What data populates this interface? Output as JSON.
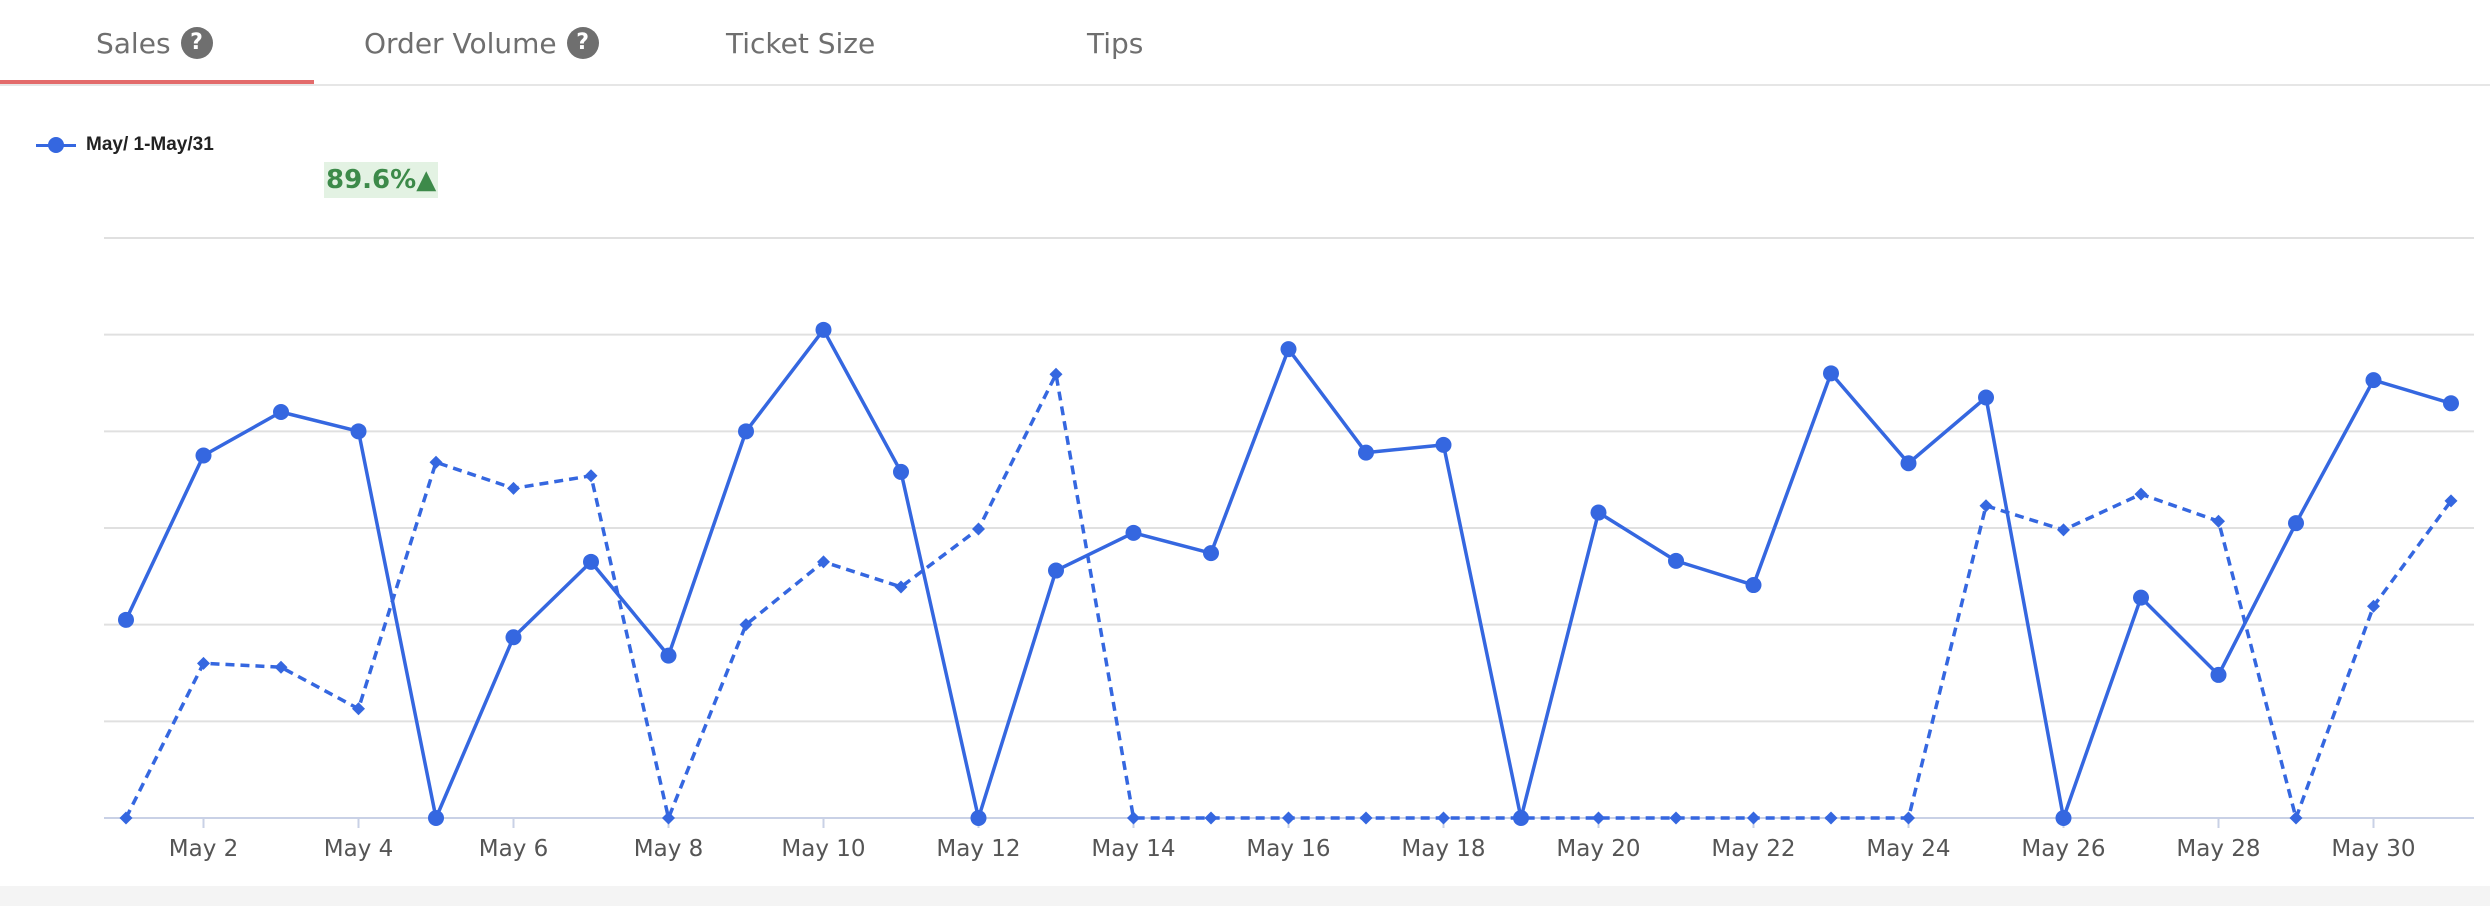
{
  "tabs": [
    {
      "label": "Sales",
      "help_icon": "question-mark-icon",
      "help": "?"
    },
    {
      "label": "Order Volume",
      "help_icon": "question-mark-icon",
      "help": "?"
    },
    {
      "label": "Ticket Size"
    },
    {
      "label": "Tips"
    }
  ],
  "badge": {
    "text": "89.6%▲",
    "color": "#3d8a4a"
  },
  "colors": {
    "series": "#3567e0",
    "active_tab_underline": "#e36b6b",
    "grid": "#e0e0e0"
  },
  "chart_data": {
    "type": "line",
    "title": "",
    "xlabel": "",
    "ylabel": "",
    "legend": {
      "placement": "top-left",
      "entries": [
        "May/ 1-May/31"
      ]
    },
    "grid": true,
    "ylim": [
      0,
      6
    ],
    "x": [
      "May 1",
      "May 2",
      "May 3",
      "May 4",
      "May 5",
      "May 6",
      "May 7",
      "May 8",
      "May 9",
      "May 10",
      "May 11",
      "May 12",
      "May 13",
      "May 14",
      "May 15",
      "May 16",
      "May 17",
      "May 18",
      "May 19",
      "May 20",
      "May 21",
      "May 22",
      "May 23",
      "May 24",
      "May 25",
      "May 26",
      "May 27",
      "May 28",
      "May 29",
      "May 30",
      "May 31"
    ],
    "tick_labels": [
      "May 2",
      "May 4",
      "May 6",
      "May 8",
      "May 10",
      "May 12",
      "May 14",
      "May 16",
      "May 18",
      "May 20",
      "May 22",
      "May 24",
      "May 26",
      "May 28",
      "May 30"
    ],
    "series": [
      {
        "name": "May/ 1-May/31",
        "style": "solid",
        "marker": "circle",
        "values": [
          2.05,
          3.75,
          4.2,
          4.0,
          0,
          1.87,
          2.65,
          1.68,
          4.0,
          5.05,
          3.58,
          0,
          2.56,
          2.95,
          2.74,
          4.85,
          3.78,
          3.86,
          0,
          3.16,
          2.66,
          2.41,
          4.6,
          3.67,
          4.35,
          0,
          2.28,
          1.48,
          3.05,
          4.53,
          4.29
        ]
      },
      {
        "style": "dashed",
        "marker": "diamond",
        "values": [
          0,
          1.6,
          1.56,
          1.13,
          3.68,
          3.41,
          3.54,
          0,
          2.0,
          2.65,
          2.39,
          2.99,
          4.59,
          0,
          0,
          0,
          0,
          0,
          0,
          0,
          0,
          0,
          0,
          0,
          3.23,
          2.98,
          3.35,
          3.07,
          0,
          2.19,
          3.28
        ]
      }
    ]
  }
}
